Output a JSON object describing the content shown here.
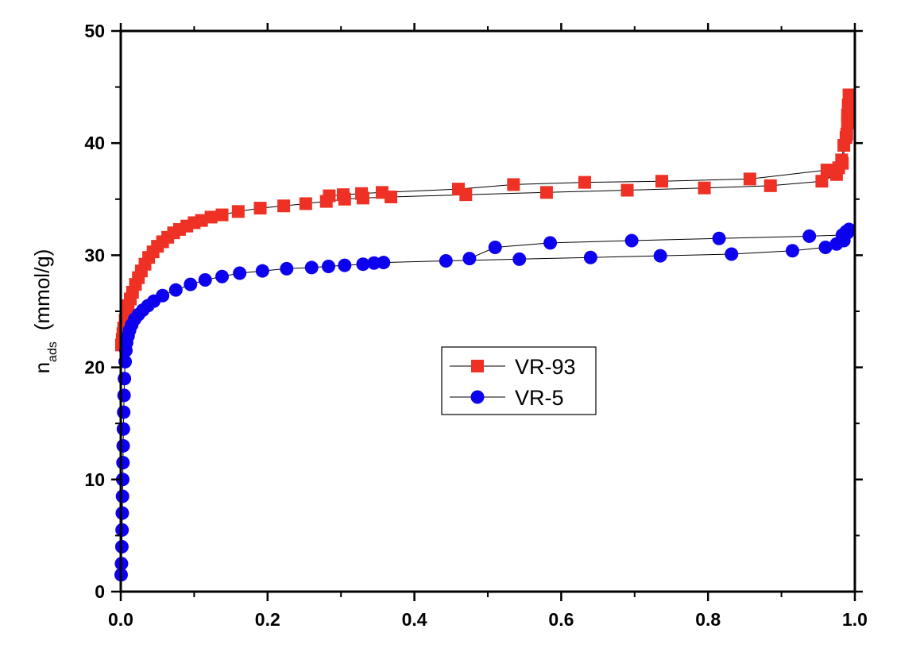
{
  "chart_data": {
    "type": "line",
    "title": "",
    "xlabel": "",
    "ylabel": {
      "main": "n",
      "sub": "ads",
      "unit": "(mmol/g)"
    },
    "xlim": [
      0,
      1
    ],
    "ylim": [
      0,
      50
    ],
    "xticks": [
      "0.0",
      "0.2",
      "0.4",
      "0.6",
      "0.8",
      "1.0"
    ],
    "xtick_values": [
      0,
      0.2,
      0.4,
      0.6,
      0.8,
      1.0
    ],
    "yticks": [
      "0",
      "10",
      "20",
      "30",
      "40",
      "50"
    ],
    "ytick_values": [
      0,
      10,
      20,
      30,
      40,
      50
    ],
    "grid": false,
    "legend_position": "center",
    "series": [
      {
        "name": "VR-93",
        "marker": "square",
        "color": "#ee3124",
        "adsorption": {
          "x": [
            0.001,
            0.002,
            0.003,
            0.004,
            0.006,
            0.008,
            0.01,
            0.013,
            0.016,
            0.02,
            0.024,
            0.028,
            0.033,
            0.038,
            0.044,
            0.05,
            0.057,
            0.064,
            0.072,
            0.08,
            0.09,
            0.1,
            0.11,
            0.123,
            0.138,
            0.16,
            0.19,
            0.222,
            0.252,
            0.28,
            0.305,
            0.33,
            0.368,
            0.47,
            0.58,
            0.69,
            0.795,
            0.885,
            0.955,
            0.975,
            0.983,
            0.988,
            0.99
          ],
          "y": [
            22.0,
            22.5,
            23.0,
            23.5,
            24.2,
            24.9,
            25.5,
            26.1,
            26.7,
            27.4,
            28.0,
            28.6,
            29.2,
            29.8,
            30.3,
            30.8,
            31.2,
            31.6,
            32.0,
            32.3,
            32.6,
            32.9,
            33.1,
            33.4,
            33.6,
            33.9,
            34.2,
            34.4,
            34.6,
            34.8,
            35.0,
            35.1,
            35.2,
            35.4,
            35.6,
            35.8,
            36.0,
            36.2,
            36.6,
            37.2,
            38.2,
            40.5,
            42.5
          ]
        },
        "desorption": {
          "x": [
            0.992,
            0.991,
            0.99,
            0.989,
            0.985,
            0.982,
            0.978,
            0.972,
            0.962,
            0.857,
            0.737,
            0.632,
            0.535,
            0.46,
            0.356,
            0.328,
            0.303,
            0.284
          ],
          "y": [
            44.3,
            43.4,
            41.8,
            40.8,
            39.8,
            38.5,
            37.8,
            37.5,
            37.6,
            36.8,
            36.6,
            36.5,
            36.3,
            35.9,
            35.6,
            35.5,
            35.4,
            35.3
          ]
        }
      },
      {
        "name": "VR-5",
        "marker": "circle",
        "color": "#0d00ee",
        "adsorption": {
          "x": [
            0.0005,
            0.001,
            0.0015,
            0.0018,
            0.0021,
            0.0024,
            0.0027,
            0.003,
            0.0033,
            0.0036,
            0.004,
            0.0045,
            0.005,
            0.006,
            0.007,
            0.008,
            0.01,
            0.012,
            0.015,
            0.019,
            0.024,
            0.03,
            0.037,
            0.045,
            0.057,
            0.075,
            0.095,
            0.115,
            0.138,
            0.162,
            0.193,
            0.226,
            0.26,
            0.283,
            0.305,
            0.33,
            0.345,
            0.358,
            0.443,
            0.543,
            0.64,
            0.735,
            0.832,
            0.915,
            0.96,
            0.975,
            0.985,
            0.99
          ],
          "y": [
            1.5,
            2.5,
            4.0,
            5.5,
            7.0,
            8.5,
            10.0,
            11.5,
            13.0,
            14.5,
            16.0,
            17.5,
            19.0,
            20.5,
            21.5,
            22.2,
            22.8,
            23.3,
            23.8,
            24.3,
            24.7,
            25.1,
            25.5,
            25.9,
            26.4,
            26.9,
            27.4,
            27.8,
            28.1,
            28.4,
            28.6,
            28.8,
            28.9,
            29.0,
            29.1,
            29.2,
            29.3,
            29.35,
            29.5,
            29.65,
            29.8,
            29.95,
            30.1,
            30.4,
            30.7,
            31.0,
            31.3,
            32.0
          ]
        },
        "desorption": {
          "x": [
            0.992,
            0.988,
            0.983,
            0.938,
            0.815,
            0.696,
            0.585,
            0.51,
            0.475
          ],
          "y": [
            32.3,
            32.1,
            31.8,
            31.7,
            31.5,
            31.3,
            31.1,
            30.7,
            29.7
          ]
        }
      }
    ]
  }
}
